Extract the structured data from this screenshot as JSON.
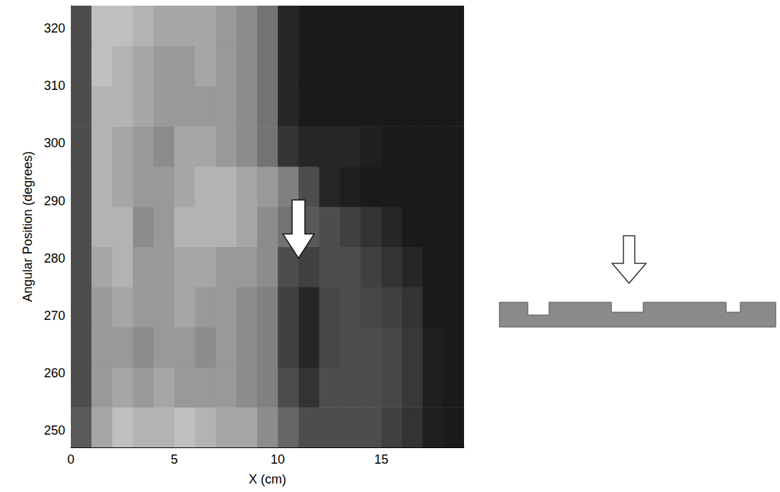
{
  "chart_data": {
    "type": "heatmap",
    "xlabel": "X (cm)",
    "ylabel": "Angular Position (degrees)",
    "xlim": [
      0,
      19
    ],
    "ylim": [
      247,
      324
    ],
    "xticks": [
      0,
      5,
      10,
      15
    ],
    "yticks": [
      250,
      260,
      270,
      280,
      290,
      300,
      310,
      320
    ],
    "grid": false,
    "zlim": [
      0,
      1
    ],
    "cells": {
      "x_edges": [
        0,
        1,
        2,
        3,
        4,
        5,
        6,
        7,
        8,
        9,
        10,
        11,
        12,
        13,
        14,
        15,
        16,
        17,
        18,
        19
      ],
      "y_edges": [
        247,
        254,
        261,
        268,
        275,
        282,
        289,
        296,
        303,
        310,
        317,
        324
      ],
      "values": [
        [
          0.35,
          0.65,
          0.75,
          0.7,
          0.7,
          0.75,
          0.7,
          0.65,
          0.65,
          0.55,
          0.4,
          0.3,
          0.3,
          0.3,
          0.3,
          0.25,
          0.2,
          0.12,
          0.1
        ],
        [
          0.3,
          0.6,
          0.65,
          0.6,
          0.65,
          0.6,
          0.6,
          0.6,
          0.55,
          0.5,
          0.3,
          0.2,
          0.3,
          0.3,
          0.3,
          0.28,
          0.22,
          0.12,
          0.1
        ],
        [
          0.3,
          0.6,
          0.6,
          0.55,
          0.6,
          0.6,
          0.55,
          0.6,
          0.55,
          0.5,
          0.25,
          0.15,
          0.28,
          0.3,
          0.3,
          0.28,
          0.22,
          0.12,
          0.1
        ],
        [
          0.3,
          0.6,
          0.65,
          0.6,
          0.6,
          0.65,
          0.6,
          0.6,
          0.55,
          0.5,
          0.25,
          0.15,
          0.28,
          0.3,
          0.28,
          0.25,
          0.2,
          0.1,
          0.1
        ],
        [
          0.3,
          0.65,
          0.7,
          0.6,
          0.6,
          0.65,
          0.65,
          0.6,
          0.6,
          0.55,
          0.3,
          0.25,
          0.3,
          0.3,
          0.25,
          0.2,
          0.15,
          0.1,
          0.1
        ],
        [
          0.3,
          0.7,
          0.7,
          0.55,
          0.6,
          0.7,
          0.7,
          0.7,
          0.65,
          0.55,
          0.45,
          0.35,
          0.3,
          0.25,
          0.2,
          0.15,
          0.1,
          0.1,
          0.1
        ],
        [
          0.3,
          0.7,
          0.65,
          0.6,
          0.6,
          0.65,
          0.7,
          0.7,
          0.65,
          0.6,
          0.5,
          0.3,
          0.15,
          0.12,
          0.1,
          0.1,
          0.1,
          0.1,
          0.1
        ],
        [
          0.3,
          0.7,
          0.65,
          0.6,
          0.55,
          0.65,
          0.65,
          0.6,
          0.55,
          0.45,
          0.2,
          0.15,
          0.15,
          0.15,
          0.12,
          0.1,
          0.1,
          0.1,
          0.1
        ],
        [
          0.3,
          0.7,
          0.7,
          0.65,
          0.6,
          0.6,
          0.6,
          0.6,
          0.55,
          0.45,
          0.15,
          0.1,
          0.1,
          0.1,
          0.1,
          0.1,
          0.1,
          0.1,
          0.1
        ],
        [
          0.3,
          0.75,
          0.7,
          0.65,
          0.6,
          0.6,
          0.65,
          0.6,
          0.55,
          0.45,
          0.15,
          0.1,
          0.1,
          0.1,
          0.1,
          0.1,
          0.1,
          0.1,
          0.1
        ],
        [
          0.3,
          0.75,
          0.75,
          0.7,
          0.65,
          0.65,
          0.65,
          0.6,
          0.55,
          0.45,
          0.15,
          0.1,
          0.1,
          0.1,
          0.1,
          0.1,
          0.1,
          0.1,
          0.1
        ]
      ]
    }
  }
}
